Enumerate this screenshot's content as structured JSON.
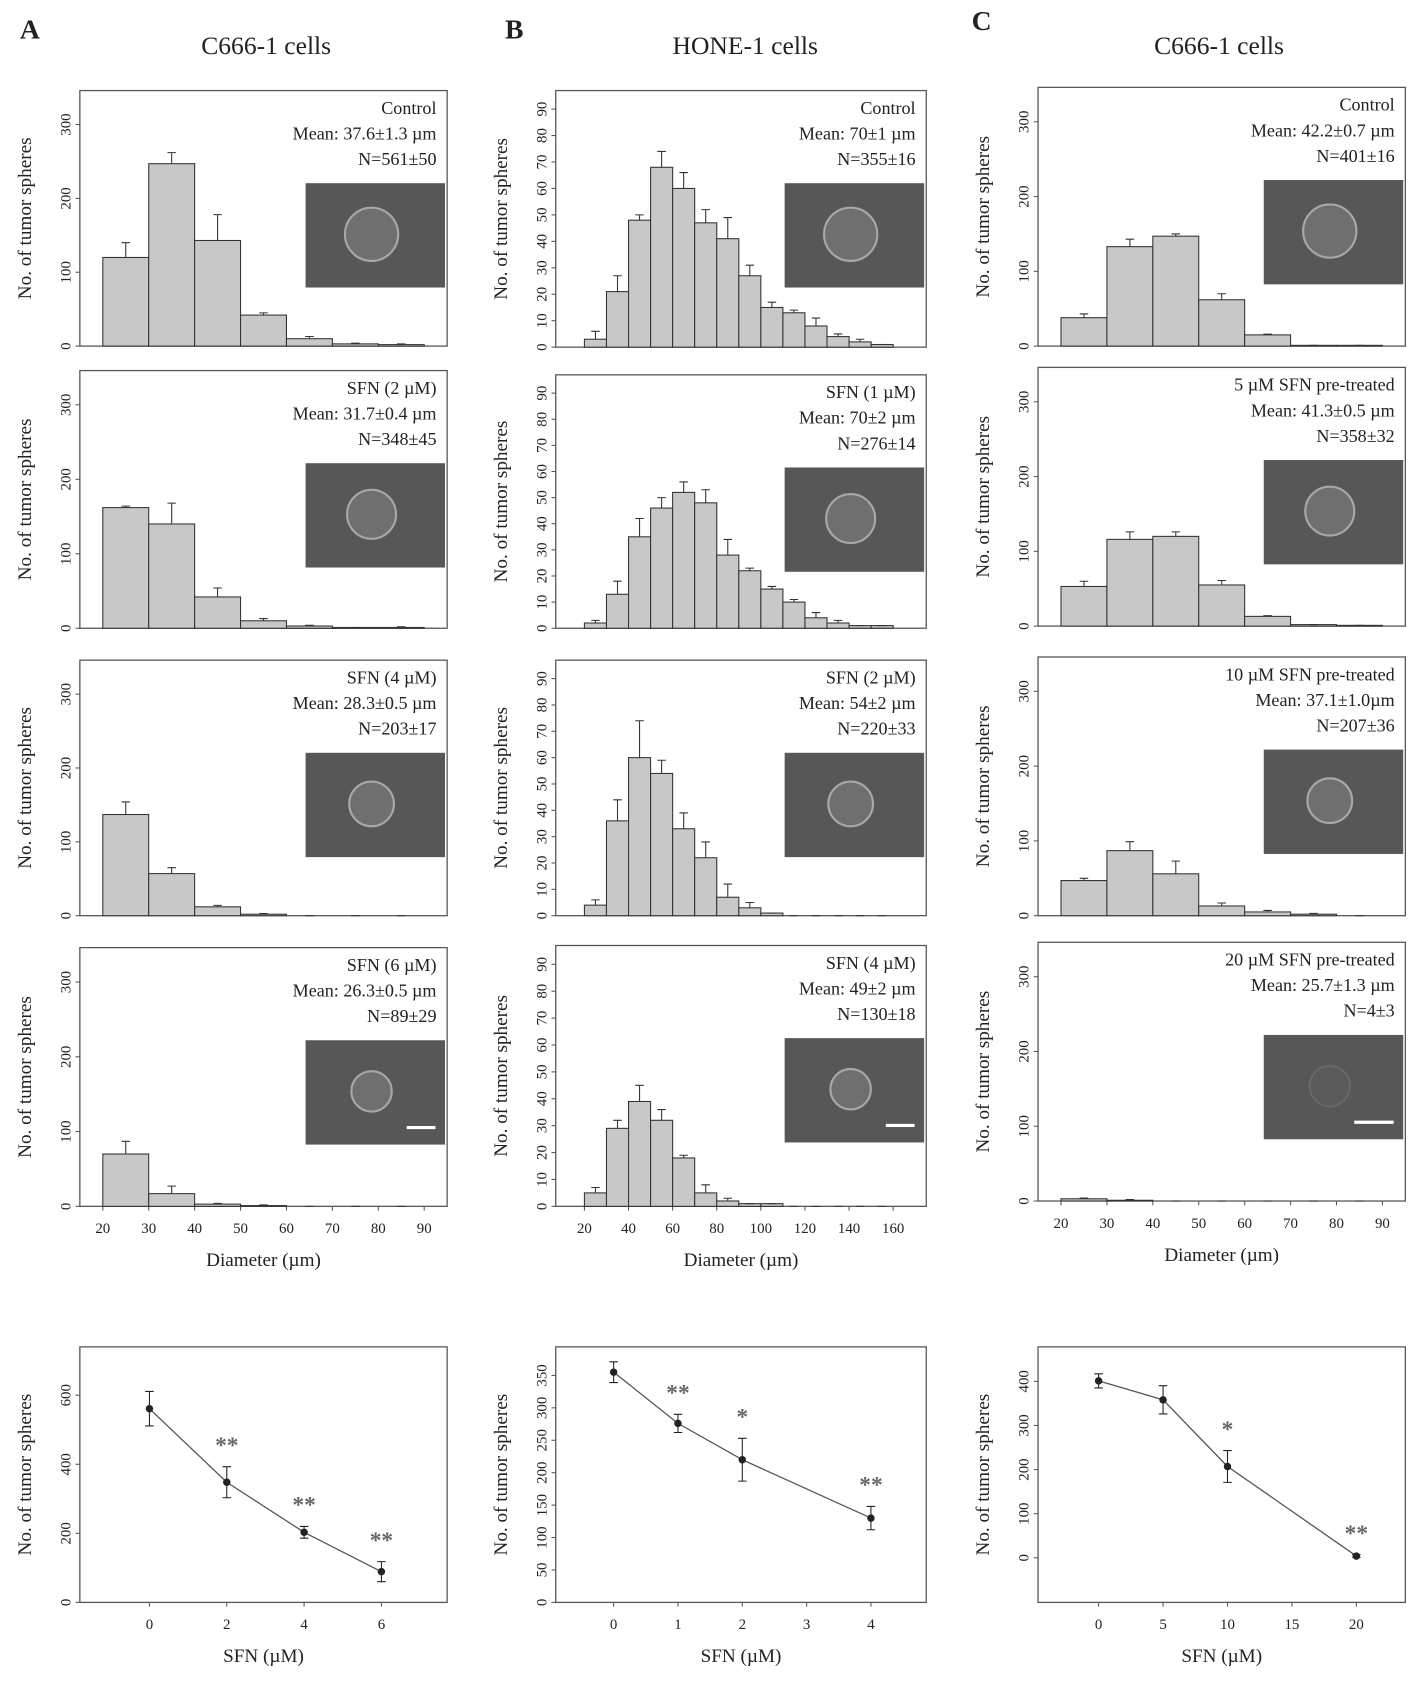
{
  "chart_data": [
    {
      "type": "histogram",
      "panel": "A",
      "column_title": "C666-1 cells",
      "annotation": [
        "Control",
        "Mean: 37.6±1.3 µm",
        "N=561±50"
      ],
      "ylabel": "No. of tumor spheres",
      "bins": [
        20,
        30,
        40,
        50,
        60,
        70,
        80,
        90
      ],
      "values": [
        120,
        247,
        143,
        42,
        10,
        3,
        2
      ],
      "errors": [
        20,
        15,
        35,
        3,
        3,
        1,
        1
      ],
      "xlim": [
        15,
        95
      ],
      "ylim": [
        0,
        346
      ],
      "yticks": [
        0,
        100,
        200,
        300
      ],
      "color": "#c8c8c8"
    },
    {
      "type": "histogram",
      "annotation": [
        "SFN (2 µM)",
        "Mean: 31.7±0.4 µm",
        "N=348±45"
      ],
      "ylabel": "No. of tumor spheres",
      "bins": [
        20,
        30,
        40,
        50,
        60,
        70,
        80,
        90
      ],
      "values": [
        162,
        140,
        42,
        10,
        3,
        1,
        1
      ],
      "errors": [
        2,
        28,
        12,
        3,
        1,
        0,
        1
      ],
      "xlim": [
        15,
        95
      ],
      "ylim": [
        0,
        346
      ],
      "yticks": [
        0,
        100,
        200,
        300
      ],
      "color": "#c8c8c8"
    },
    {
      "type": "histogram",
      "annotation": [
        "SFN (4 µM)",
        "Mean: 28.3±0.5 µm",
        "N=203±17"
      ],
      "ylabel": "No. of tumor spheres",
      "bins": [
        20,
        30,
        40,
        50,
        60,
        70,
        80,
        90
      ],
      "values": [
        137,
        57,
        12,
        2,
        0,
        0,
        0
      ],
      "errors": [
        17,
        8,
        2,
        1,
        0,
        0,
        0
      ],
      "xlim": [
        15,
        95
      ],
      "ylim": [
        0,
        346
      ],
      "yticks": [
        0,
        100,
        200,
        300
      ],
      "color": "#c8c8c8"
    },
    {
      "type": "histogram",
      "annotation": [
        "SFN (6 µM)",
        "Mean: 26.3±0.5 µm",
        "N=89±29"
      ],
      "ylabel": "No. of tumor spheres",
      "xlabel": "Diameter (µm)",
      "bins": [
        20,
        30,
        40,
        50,
        60,
        70,
        80,
        90
      ],
      "values": [
        70,
        17,
        3,
        1,
        0,
        0,
        0
      ],
      "errors": [
        17,
        10,
        1,
        1,
        0,
        0,
        0
      ],
      "xlim": [
        15,
        95
      ],
      "ylim": [
        0,
        346
      ],
      "yticks": [
        0,
        100,
        200,
        300
      ],
      "xticks": [
        20,
        30,
        40,
        50,
        60,
        70,
        80,
        90
      ],
      "color": "#c8c8c8"
    },
    {
      "type": "line",
      "ylabel": "No. of tumor spheres",
      "xlabel": "SFN (µM)",
      "x": [
        0,
        2,
        4,
        6
      ],
      "values": [
        561,
        348,
        203,
        89
      ],
      "errors": [
        50,
        45,
        17,
        29
      ],
      "significance": [
        null,
        "**",
        "**",
        "**"
      ],
      "xlim": [
        -1.8,
        7.7
      ],
      "ylim": [
        0,
        740
      ],
      "yticks": [
        0,
        200,
        400,
        600
      ],
      "xticks": [
        0,
        2,
        4,
        6
      ],
      "color": "#222222"
    },
    {
      "type": "histogram",
      "panel": "B",
      "column_title": "HONE-1 cells",
      "annotation": [
        "Control",
        "Mean: 70±1 µm",
        "N=355±16"
      ],
      "ylabel": "No. of tumor spheres",
      "bins": [
        20,
        30,
        40,
        50,
        60,
        70,
        80,
        90,
        100,
        110,
        120,
        130,
        140,
        150,
        160
      ],
      "values": [
        3,
        21,
        48,
        68,
        60,
        47,
        41,
        27,
        15,
        13,
        8,
        4,
        2,
        1
      ],
      "errors": [
        3,
        6,
        2,
        6,
        6,
        5,
        8,
        4,
        2,
        1,
        3,
        1,
        1,
        0
      ],
      "xlim": [
        7,
        175
      ],
      "ylim": [
        0,
        97
      ],
      "yticks": [
        0,
        10,
        20,
        30,
        40,
        50,
        60,
        70,
        80,
        90
      ],
      "color": "#c8c8c8"
    },
    {
      "type": "histogram",
      "annotation": [
        "SFN (1 µM)",
        "Mean: 70±2 µm",
        "N=276±14"
      ],
      "ylabel": "No. of tumor spheres",
      "bins": [
        20,
        30,
        40,
        50,
        60,
        70,
        80,
        90,
        100,
        110,
        120,
        130,
        140,
        150,
        160
      ],
      "values": [
        2,
        13,
        35,
        46,
        52,
        48,
        28,
        22,
        15,
        10,
        4,
        2,
        1,
        1
      ],
      "errors": [
        1,
        5,
        7,
        4,
        4,
        5,
        6,
        1,
        1,
        1,
        2,
        1,
        0,
        0
      ],
      "xlim": [
        7,
        175
      ],
      "ylim": [
        0,
        97
      ],
      "yticks": [
        0,
        10,
        20,
        30,
        40,
        50,
        60,
        70,
        80,
        90
      ],
      "color": "#c8c8c8"
    },
    {
      "type": "histogram",
      "annotation": [
        "SFN (2 µM)",
        "Mean: 54±2 µm",
        "N=220±33"
      ],
      "ylabel": "No. of tumor spheres",
      "bins": [
        20,
        30,
        40,
        50,
        60,
        70,
        80,
        90,
        100,
        110,
        120,
        130,
        140,
        150,
        160
      ],
      "values": [
        4,
        36,
        60,
        54,
        33,
        22,
        7,
        3,
        1,
        0,
        0,
        0,
        0,
        0
      ],
      "errors": [
        2,
        8,
        14,
        5,
        6,
        6,
        5,
        2,
        0,
        0,
        0,
        0,
        0,
        0
      ],
      "xlim": [
        7,
        175
      ],
      "ylim": [
        0,
        97
      ],
      "yticks": [
        0,
        10,
        20,
        30,
        40,
        50,
        60,
        70,
        80,
        90
      ],
      "color": "#c8c8c8"
    },
    {
      "type": "histogram",
      "annotation": [
        "SFN (4 µM)",
        "Mean: 49±2 µm",
        "N=130±18"
      ],
      "ylabel": "No. of tumor spheres",
      "xlabel": "Diameter (µm)",
      "bins": [
        20,
        30,
        40,
        50,
        60,
        70,
        80,
        90,
        100,
        110,
        120,
        130,
        140,
        150,
        160
      ],
      "values": [
        5,
        29,
        39,
        32,
        18,
        5,
        2,
        1,
        1,
        0,
        0,
        0,
        0,
        0
      ],
      "errors": [
        2,
        3,
        6,
        4,
        1,
        3,
        1,
        0,
        0,
        0,
        0,
        0,
        0,
        0
      ],
      "xlim": [
        7,
        175
      ],
      "ylim": [
        0,
        97
      ],
      "yticks": [
        0,
        10,
        20,
        30,
        40,
        50,
        60,
        70,
        80,
        90
      ],
      "xticks": [
        20,
        40,
        60,
        80,
        100,
        120,
        140,
        160
      ],
      "color": "#c8c8c8"
    },
    {
      "type": "line",
      "ylabel": "No. of tumor spheres",
      "xlabel": "SFN (µM)",
      "x": [
        0,
        1,
        2,
        4
      ],
      "values": [
        355,
        276,
        220,
        130
      ],
      "errors": [
        16,
        14,
        33,
        18
      ],
      "significance": [
        null,
        "**",
        "*",
        "**"
      ],
      "xlim": [
        -0.9,
        4.86
      ],
      "ylim": [
        0,
        394
      ],
      "yticks": [
        0,
        50,
        100,
        150,
        200,
        250,
        300,
        350
      ],
      "xticks": [
        0,
        1,
        2,
        3,
        4
      ],
      "color": "#222222"
    },
    {
      "type": "histogram",
      "panel": "C",
      "column_title": "C666-1 cells",
      "annotation": [
        "Control",
        "Mean: 42.2±0.7 µm",
        "N=401±16"
      ],
      "ylabel": "No. of tumor spheres",
      "bins": [
        20,
        30,
        40,
        50,
        60,
        70,
        80,
        90
      ],
      "values": [
        38,
        133,
        147,
        62,
        15,
        1,
        1
      ],
      "errors": [
        5,
        10,
        3,
        8,
        1,
        0,
        0
      ],
      "xlim": [
        15,
        95
      ],
      "ylim": [
        0,
        346
      ],
      "yticks": [
        0,
        100,
        200,
        300
      ],
      "color": "#c8c8c8"
    },
    {
      "type": "histogram",
      "annotation": [
        "5 µM SFN pre-treated",
        "Mean: 41.3±0.5 µm",
        "N=358±32"
      ],
      "ylabel": "No. of tumor spheres",
      "bins": [
        20,
        30,
        40,
        50,
        60,
        70,
        80,
        90
      ],
      "values": [
        53,
        116,
        120,
        55,
        13,
        2,
        1
      ],
      "errors": [
        7,
        10,
        6,
        6,
        1,
        0,
        0
      ],
      "xlim": [
        15,
        95
      ],
      "ylim": [
        0,
        346
      ],
      "yticks": [
        0,
        100,
        200,
        300
      ],
      "color": "#c8c8c8"
    },
    {
      "type": "histogram",
      "annotation": [
        "10 µM SFN pre-treated",
        "Mean: 37.1±1.0µm",
        "N=207±36"
      ],
      "ylabel": "No. of tumor spheres",
      "bins": [
        20,
        30,
        40,
        50,
        60,
        70,
        80,
        90
      ],
      "values": [
        47,
        87,
        56,
        13,
        5,
        2,
        0
      ],
      "errors": [
        3,
        12,
        17,
        4,
        2,
        1,
        0
      ],
      "xlim": [
        15,
        95
      ],
      "ylim": [
        0,
        346
      ],
      "yticks": [
        0,
        100,
        200,
        300
      ],
      "color": "#c8c8c8"
    },
    {
      "type": "histogram",
      "annotation": [
        "20 µM SFN pre-treated",
        "Mean: 25.7±1.3 µm",
        "N=4±3"
      ],
      "ylabel": "No. of tumor spheres",
      "xlabel": "Diameter (µm)",
      "bins": [
        20,
        30,
        40,
        50,
        60,
        70,
        80,
        90
      ],
      "values": [
        3,
        1,
        0,
        0,
        0,
        0,
        0
      ],
      "errors": [
        1,
        1,
        0,
        0,
        0,
        0,
        0
      ],
      "xlim": [
        15,
        95
      ],
      "ylim": [
        0,
        346
      ],
      "yticks": [
        0,
        100,
        200,
        300
      ],
      "xticks": [
        20,
        30,
        40,
        50,
        60,
        70,
        80,
        90
      ],
      "color": "#c8c8c8"
    },
    {
      "type": "line",
      "ylabel": "No. of tumor spheres",
      "xlabel": "SFN (µM)",
      "x": [
        0,
        5,
        10,
        20
      ],
      "values": [
        401,
        358,
        207,
        4
      ],
      "errors": [
        16,
        32,
        36,
        3
      ],
      "significance": [
        null,
        null,
        "*",
        "**"
      ],
      "xlim": [
        -4.7,
        23.8
      ],
      "ylim": [
        -101,
        478
      ],
      "yticks": [
        0,
        100,
        200,
        300,
        400
      ],
      "xticks": [
        0,
        5,
        10,
        15,
        20
      ],
      "color": "#222222"
    }
  ]
}
